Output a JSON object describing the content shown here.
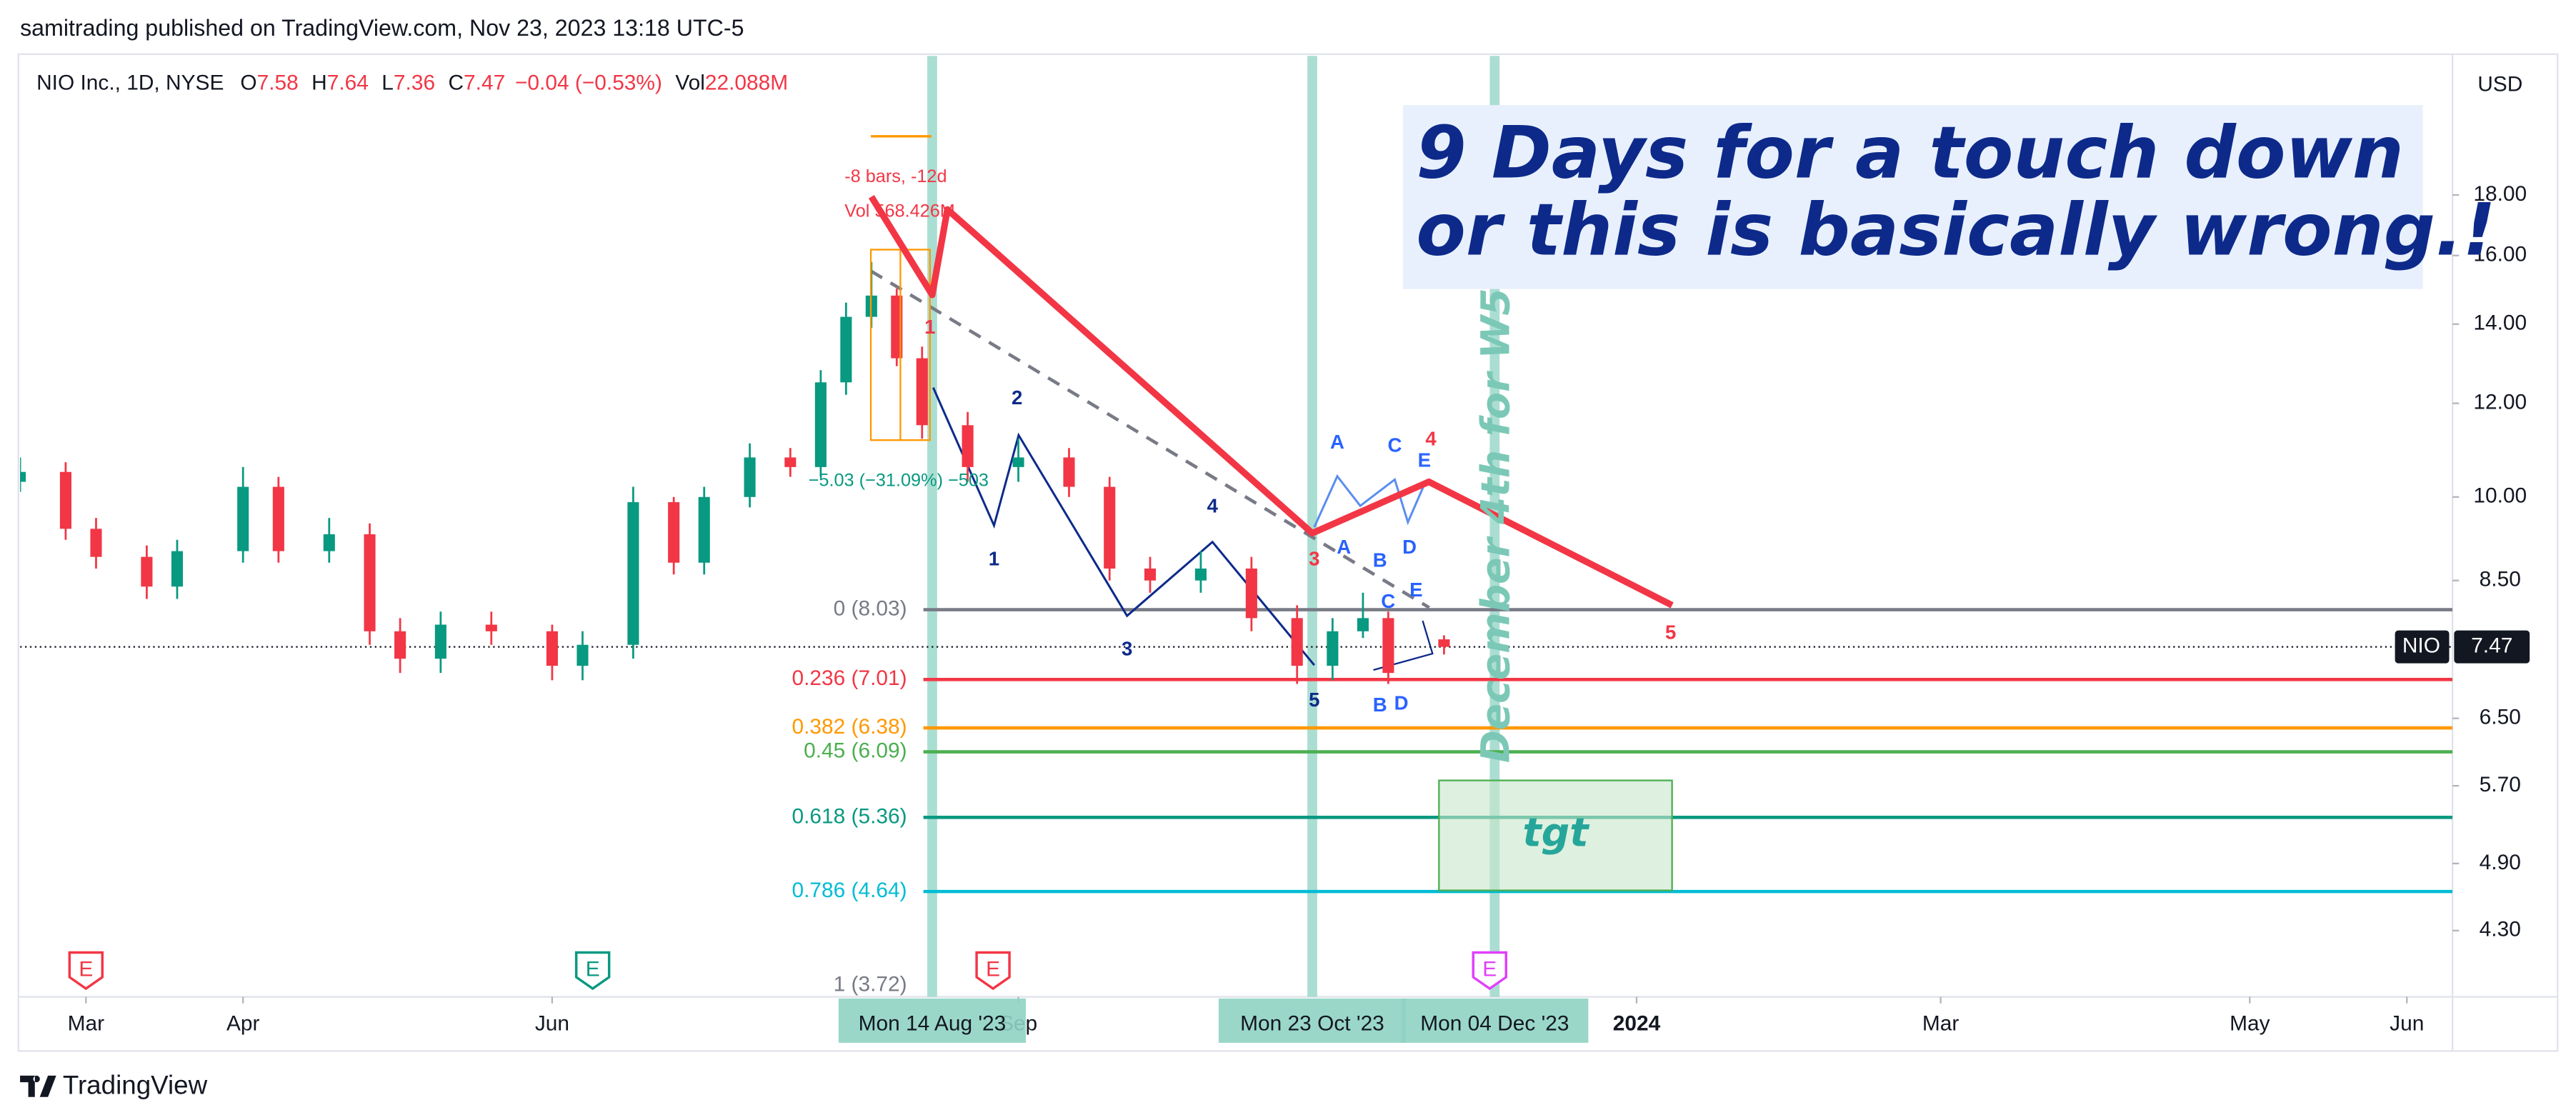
{
  "header": {
    "publisher": "samitrading published on TradingView.com, Nov 23, 2023 13:18 UTC-5",
    "brand": "TradingView",
    "currency": "USD"
  },
  "chart_data": {
    "type": "candlestick",
    "log_scale": true,
    "grid": false,
    "legend": {
      "symbol": "NIO Inc., 1D, NYSE",
      "o": "O",
      "h": "H",
      "l": "L",
      "c": "C",
      "change": "−0.04 (−0.53%)",
      "vol_label": "Vol",
      "volume": "22.088M"
    },
    "ticker": "NIO",
    "up_color": "#089981",
    "down_color": "#f23645",
    "x": [
      46,
      55,
      61,
      71,
      77,
      90,
      97,
      107,
      115,
      121,
      129,
      139,
      151,
      157,
      167,
      175,
      181,
      190,
      198,
      204,
      209,
      214,
      219,
      224,
      233,
      243,
      253,
      261,
      269,
      279,
      289,
      298,
      305,
      311,
      316,
      327
    ],
    "open": [
      10.3,
      10.5,
      9.4,
      8.9,
      8.4,
      9.0,
      10.2,
      9.0,
      9.3,
      7.7,
      7.3,
      7.8,
      7.7,
      7.2,
      7.5,
      9.9,
      8.8,
      10.0,
      10.8,
      10.6,
      12.5,
      14.2,
      14.8,
      13.1,
      11.5,
      10.6,
      10.8,
      10.2,
      8.7,
      8.5,
      8.7,
      7.9,
      7.2,
      7.7,
      7.9,
      7.58
    ],
    "high": [
      10.8,
      10.7,
      9.6,
      9.1,
      9.2,
      10.6,
      10.4,
      9.6,
      9.5,
      7.9,
      8.0,
      8.0,
      7.8,
      7.7,
      10.2,
      10.0,
      10.2,
      11.1,
      11.0,
      12.8,
      14.6,
      15.8,
      15.0,
      13.4,
      11.8,
      11.2,
      11.0,
      10.4,
      8.9,
      9.0,
      8.9,
      8.1,
      7.9,
      8.3,
      8.0,
      7.64
    ],
    "low": [
      10.1,
      9.2,
      8.7,
      8.2,
      8.2,
      8.8,
      8.8,
      8.8,
      7.5,
      7.1,
      7.1,
      7.5,
      7.0,
      7.0,
      7.3,
      8.6,
      8.6,
      9.8,
      10.4,
      10.4,
      12.2,
      13.9,
      12.9,
      11.2,
      10.3,
      10.3,
      10.0,
      8.5,
      8.3,
      8.3,
      7.7,
      6.95,
      7.0,
      7.6,
      6.95,
      7.36
    ],
    "close": [
      10.5,
      9.4,
      8.9,
      8.4,
      9.0,
      10.2,
      9.0,
      9.3,
      7.7,
      7.3,
      7.8,
      7.7,
      7.2,
      7.5,
      9.9,
      8.8,
      10.0,
      10.8,
      10.6,
      12.5,
      14.2,
      14.8,
      13.1,
      11.5,
      10.6,
      10.8,
      10.2,
      8.7,
      8.5,
      8.7,
      7.9,
      7.2,
      7.7,
      7.9,
      7.1,
      7.47
    ],
    "xlim": [
      46,
      526
    ],
    "xticks": [
      {
        "value": 59,
        "label": "Mar"
      },
      {
        "value": 90,
        "label": "Apr"
      },
      {
        "value": 151,
        "label": "Jun"
      },
      {
        "value": 243,
        "label": "Sep"
      },
      {
        "value": 365,
        "label": "2024"
      },
      {
        "value": 425,
        "label": "Mar"
      },
      {
        "value": 486,
        "label": "May"
      },
      {
        "value": 517,
        "label": "Jun"
      }
    ],
    "ylim": [
      3.78,
      23.6
    ],
    "yticks": [
      {
        "value": 4.3,
        "label": "4.30"
      },
      {
        "value": 4.9,
        "label": "4.90"
      },
      {
        "value": 5.7,
        "label": "5.70"
      },
      {
        "value": 6.5,
        "label": "6.50"
      },
      {
        "value": 8.5,
        "label": "8.50"
      },
      {
        "value": 10,
        "label": "10.00"
      },
      {
        "value": 12,
        "label": "12.00"
      },
      {
        "value": 14,
        "label": "14.00"
      },
      {
        "value": 16,
        "label": "16.00"
      },
      {
        "value": 18,
        "label": "18.00"
      }
    ],
    "fib_levels": [
      {
        "value": 8.03,
        "label": "0 (8.03)",
        "color": "#787b86"
      },
      {
        "value": 7.01,
        "label": "0.236 (7.01)",
        "color": "#f23645"
      },
      {
        "value": 6.38,
        "label": "0.382 (6.38)",
        "color": "#ff9800"
      },
      {
        "value": 6.09,
        "label": "0.45 (6.09)",
        "color": "#4caf50"
      },
      {
        "value": 5.36,
        "label": "0.618 (5.36)",
        "color": "#089981"
      },
      {
        "value": 4.64,
        "label": "0.786 (4.64)",
        "color": "#00bcd4"
      },
      {
        "value": 3.72,
        "label": "1 (3.72)",
        "color": "#787b86"
      }
    ],
    "vlines": [
      {
        "x": 226,
        "label": "Mon 14 Aug '23"
      },
      {
        "x": 301,
        "label": "Mon 23 Oct '23"
      },
      {
        "x": 337,
        "label": "Mon 04 Dec '23"
      }
    ],
    "earnings": {
      "label": "E",
      "x": [
        59,
        159,
        238,
        336
      ],
      "colors": [
        "#f23645",
        "#089981",
        "#f23645",
        "#e040fb"
      ]
    },
    "wave_line": {
      "color": "#f23645",
      "x": [
        214,
        226,
        229,
        301,
        324,
        372
      ],
      "y": [
        17.94,
        14.82,
        17.5,
        9.32,
        10.3,
        8.1
      ]
    },
    "target_box": {
      "label": "tgt",
      "x": [
        326,
        372
      ],
      "y": [
        4.65,
        5.76
      ]
    },
    "annotation": [
      "9 Days for a touch down",
      "or this is basically wrong.!"
    ],
    "vertical_note": "December 4th for W5",
    "measure": [
      "-8 bars, -12d",
      "Vol 568.426M",
      "−5.03 (−31.09%) −503"
    ],
    "wave_labels": [
      "1",
      "2",
      "3",
      "4",
      "5",
      "1",
      "3",
      "4",
      "5",
      "A",
      "C",
      "E",
      "A",
      "B",
      "D",
      "C",
      "E",
      "B",
      "D"
    ]
  }
}
